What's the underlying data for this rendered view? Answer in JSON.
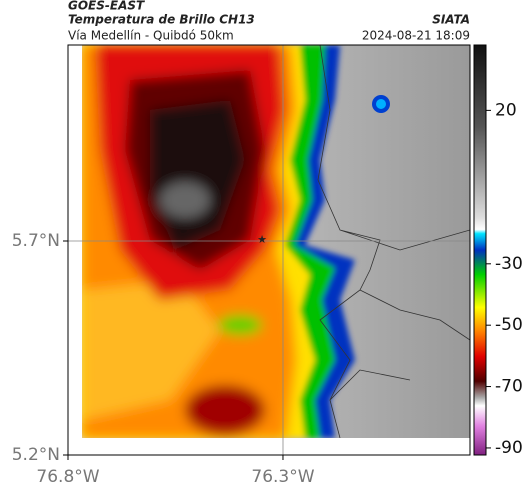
{
  "header": {
    "satellite": "GOES-EAST",
    "product": "Temperatura de Brillo CH13",
    "agency": "SIATA",
    "region": "Vía Medellín - Quibdó 50km",
    "timestamp": "2024-08-21 18:09"
  },
  "map": {
    "xlim": [
      -76.8,
      -75.865
    ],
    "ylim": [
      5.2,
      6.158
    ],
    "xticks": [
      {
        "value": -76.8,
        "label": "76.8°W"
      },
      {
        "value": -76.3,
        "label": "76.3°W"
      }
    ],
    "yticks": [
      {
        "value": 5.7,
        "label": "5.7°N"
      },
      {
        "value": 5.2,
        "label": "5.2°N"
      }
    ]
  },
  "colorbar": {
    "lim": [
      -92.3,
      41.3
    ],
    "ticks": [
      20,
      -30,
      -50,
      -70,
      -90
    ]
  }
}
